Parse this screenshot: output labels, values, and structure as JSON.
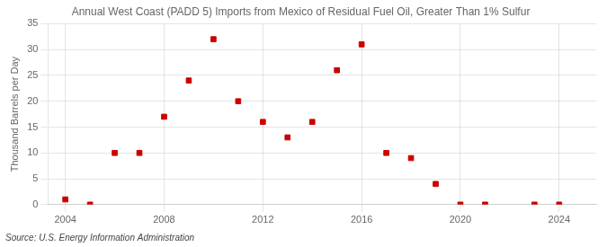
{
  "chart_data": {
    "type": "scatter",
    "title": "Annual West Coast (PADD 5) Imports from Mexico of Residual Fuel Oil, Greater Than 1% Sulfur",
    "ylabel": "Thousand Barrels per Day",
    "source": "Source: U.S. Energy Information Administration",
    "x": [
      2004,
      2005,
      2006,
      2007,
      2008,
      2009,
      2010,
      2011,
      2012,
      2013,
      2014,
      2015,
      2016,
      2017,
      2018,
      2019,
      2020,
      2021,
      2023,
      2024
    ],
    "values": [
      1.0,
      0.0,
      10.0,
      10.0,
      17.0,
      24.0,
      32.0,
      20.0,
      16.0,
      13.0,
      16.0,
      26.0,
      31.0,
      10.0,
      9.0,
      4.0,
      0.0,
      0.0,
      0.0,
      0.0
    ],
    "color": "#cc0000",
    "marker": "square",
    "xlim": [
      2003.3,
      2025.5
    ],
    "xticks": [
      2004,
      2008,
      2012,
      2016,
      2020,
      2024
    ],
    "ylim": [
      0,
      35
    ],
    "yticks": [
      0,
      5,
      10,
      15,
      20,
      25,
      30,
      35
    ],
    "grid": true
  }
}
